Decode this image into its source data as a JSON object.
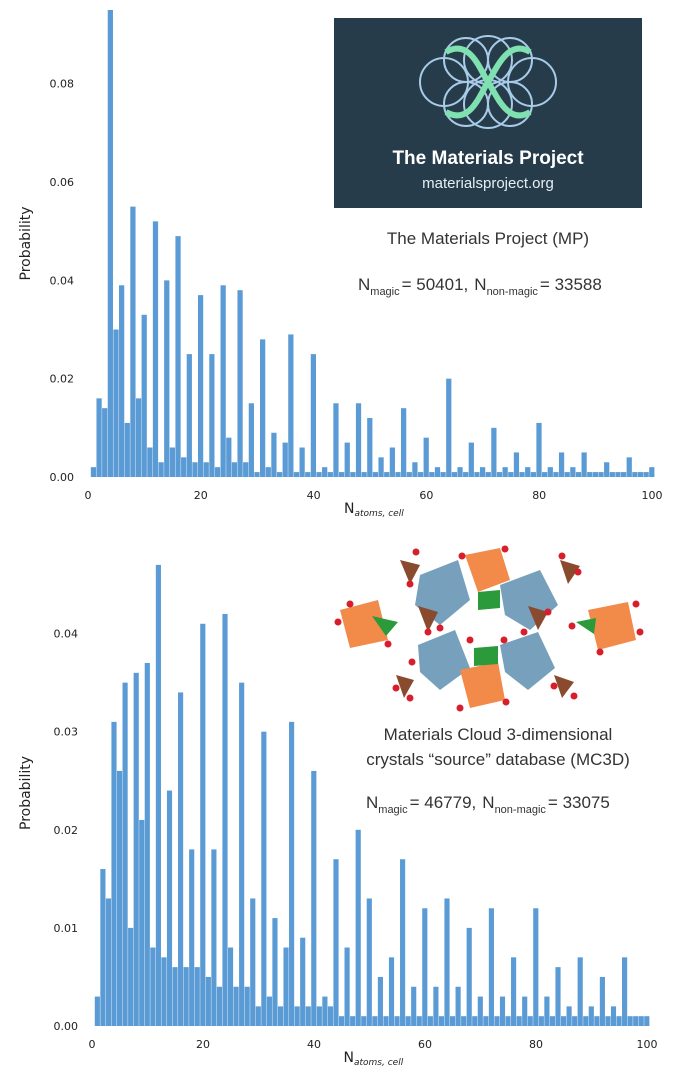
{
  "chart_data": [
    {
      "type": "bar",
      "title": "The Materials Project (MP)",
      "annotation": {
        "magic_label": "N",
        "magic_sub": "magic",
        "magic_value": "= 50401,",
        "nonmagic_label": "N",
        "nonmagic_sub": "non-magic",
        "nonmagic_value": "= 33588"
      },
      "logo": {
        "title": "The Materials Project",
        "url": "materialsproject.org",
        "bg": "#263c4a",
        "accent": "#7fe0b0",
        "ring": "#a8cbe8"
      },
      "xlabel_main": "N",
      "xlabel_sub": "atoms, cell",
      "ylabel": "Probability",
      "xlim": [
        0,
        100
      ],
      "ylim": [
        0,
        0.095
      ],
      "xticks": [
        "0",
        "20",
        "40",
        "60",
        "80",
        "100"
      ],
      "yticks": [
        "0.00",
        "0.02",
        "0.04",
        "0.06",
        "0.08"
      ],
      "ytick_values": [
        0,
        0.02,
        0.04,
        0.06,
        0.08
      ],
      "color": "#5b9bd5",
      "x": [
        1,
        2,
        3,
        4,
        5,
        6,
        7,
        8,
        9,
        10,
        11,
        12,
        13,
        14,
        15,
        16,
        17,
        18,
        19,
        20,
        21,
        22,
        23,
        24,
        25,
        26,
        27,
        28,
        29,
        30,
        31,
        32,
        33,
        34,
        35,
        36,
        37,
        38,
        39,
        40,
        41,
        42,
        43,
        44,
        45,
        46,
        47,
        48,
        49,
        50,
        51,
        52,
        53,
        54,
        55,
        56,
        57,
        58,
        59,
        60,
        61,
        62,
        63,
        64,
        65,
        66,
        67,
        68,
        69,
        70,
        71,
        72,
        73,
        74,
        75,
        76,
        77,
        78,
        79,
        80,
        81,
        82,
        83,
        84,
        85,
        86,
        87,
        88,
        89,
        90,
        91,
        92,
        93,
        94,
        95,
        96,
        97,
        98,
        99,
        100
      ],
      "values": [
        0.002,
        0.016,
        0.014,
        0.095,
        0.03,
        0.039,
        0.011,
        0.055,
        0.016,
        0.033,
        0.006,
        0.052,
        0.003,
        0.04,
        0.006,
        0.049,
        0.004,
        0.025,
        0.003,
        0.037,
        0.003,
        0.025,
        0.002,
        0.039,
        0.008,
        0.003,
        0.038,
        0.003,
        0.015,
        0.001,
        0.028,
        0.002,
        0.009,
        0.001,
        0.007,
        0.029,
        0.001,
        0.006,
        0.001,
        0.025,
        0.001,
        0.002,
        0.001,
        0.015,
        0.001,
        0.007,
        0.001,
        0.015,
        0.001,
        0.012,
        0.001,
        0.004,
        0.001,
        0.006,
        0.001,
        0.014,
        0.001,
        0.003,
        0.001,
        0.008,
        0.001,
        0.002,
        0.001,
        0.02,
        0.001,
        0.002,
        0.001,
        0.007,
        0.001,
        0.002,
        0.001,
        0.01,
        0.001,
        0.002,
        0.001,
        0.005,
        0.001,
        0.002,
        0.001,
        0.011,
        0.001,
        0.002,
        0.001,
        0.005,
        0.001,
        0.002,
        0.001,
        0.005,
        0.001,
        0.001,
        0.001,
        0.003,
        0.001,
        0.001,
        0.001,
        0.004,
        0.001,
        0.001,
        0.001,
        0.002
      ]
    },
    {
      "type": "bar",
      "title_line1": "Materials Cloud 3-dimensional",
      "title_line2": "crystals “source” database (MC3D)",
      "annotation": {
        "magic_label": "N",
        "magic_sub": "magic",
        "magic_value": "= 46779,",
        "nonmagic_label": "N",
        "nonmagic_sub": "non-magic",
        "nonmagic_value": "= 33075"
      },
      "xlabel_main": "N",
      "xlabel_sub": "atoms, cell",
      "ylabel": "Probability",
      "xlim": [
        0,
        100
      ],
      "ylim": [
        0,
        0.0475
      ],
      "xticks": [
        "0",
        "20",
        "40",
        "60",
        "80",
        "100"
      ],
      "yticks": [
        "0.00",
        "0.01",
        "0.02",
        "0.03",
        "0.04"
      ],
      "ytick_values": [
        0,
        0.01,
        0.02,
        0.03,
        0.04
      ],
      "color": "#5b9bd5",
      "x": [
        1,
        2,
        3,
        4,
        5,
        6,
        7,
        8,
        9,
        10,
        11,
        12,
        13,
        14,
        15,
        16,
        17,
        18,
        19,
        20,
        21,
        22,
        23,
        24,
        25,
        26,
        27,
        28,
        29,
        30,
        31,
        32,
        33,
        34,
        35,
        36,
        37,
        38,
        39,
        40,
        41,
        42,
        43,
        44,
        45,
        46,
        47,
        48,
        49,
        50,
        51,
        52,
        53,
        54,
        55,
        56,
        57,
        58,
        59,
        60,
        61,
        62,
        63,
        64,
        65,
        66,
        67,
        68,
        69,
        70,
        71,
        72,
        73,
        74,
        75,
        76,
        77,
        78,
        79,
        80,
        81,
        82,
        83,
        84,
        85,
        86,
        87,
        88,
        89,
        90,
        91,
        92,
        93,
        94,
        95,
        96,
        97,
        98,
        99,
        100
      ],
      "values": [
        0.003,
        0.016,
        0.013,
        0.031,
        0.026,
        0.035,
        0.01,
        0.036,
        0.021,
        0.037,
        0.008,
        0.047,
        0.007,
        0.024,
        0.006,
        0.034,
        0.006,
        0.018,
        0.006,
        0.041,
        0.005,
        0.018,
        0.004,
        0.042,
        0.008,
        0.004,
        0.035,
        0.004,
        0.013,
        0.002,
        0.03,
        0.003,
        0.011,
        0.002,
        0.008,
        0.031,
        0.002,
        0.009,
        0.002,
        0.026,
        0.002,
        0.003,
        0.002,
        0.017,
        0.001,
        0.008,
        0.001,
        0.02,
        0.001,
        0.013,
        0.001,
        0.005,
        0.001,
        0.007,
        0.001,
        0.017,
        0.001,
        0.004,
        0.001,
        0.012,
        0.001,
        0.004,
        0.001,
        0.013,
        0.001,
        0.004,
        0.001,
        0.01,
        0.001,
        0.003,
        0.001,
        0.012,
        0.001,
        0.003,
        0.001,
        0.007,
        0.001,
        0.003,
        0.001,
        0.012,
        0.001,
        0.003,
        0.001,
        0.006,
        0.001,
        0.002,
        0.001,
        0.007,
        0.001,
        0.002,
        0.001,
        0.005,
        0.001,
        0.002,
        0.001,
        0.007,
        0.001,
        0.001,
        0.001,
        0.001
      ]
    }
  ]
}
